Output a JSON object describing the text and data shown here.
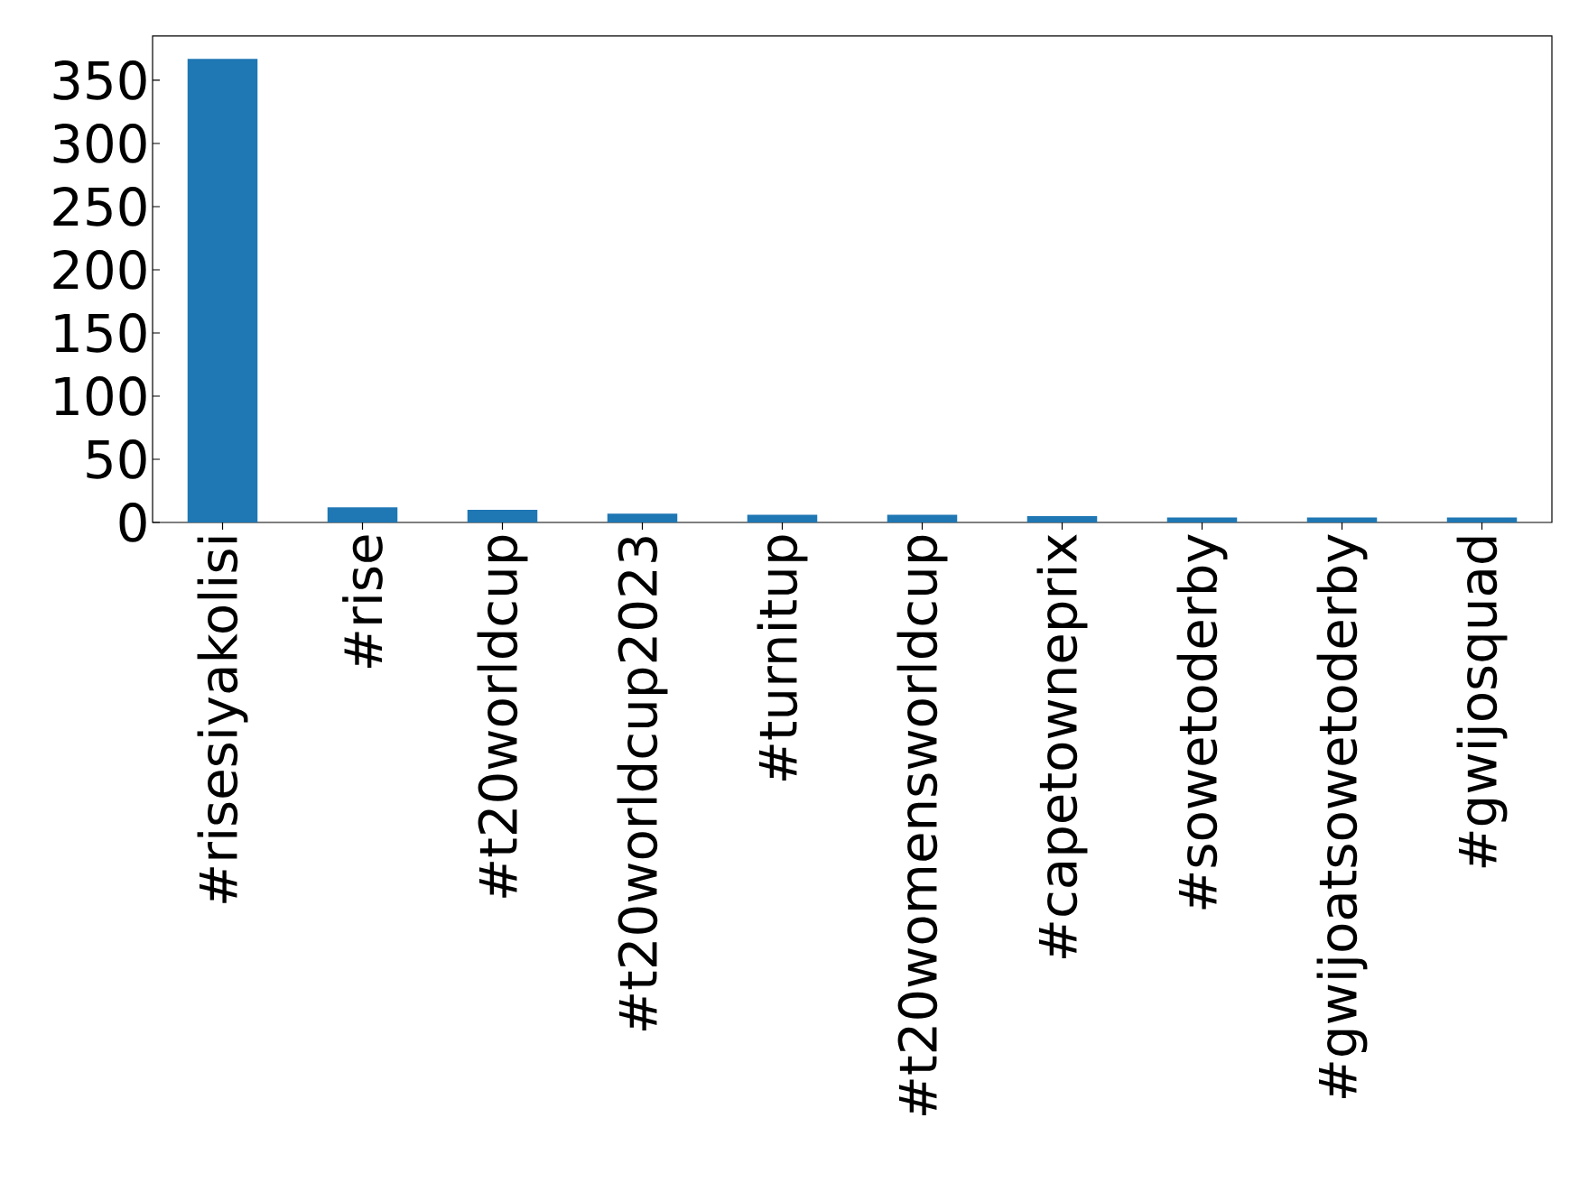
{
  "chart_data": {
    "type": "bar",
    "categories": [
      "#risesiyakolisi",
      "#rise",
      "#t20worldcup",
      "#t20worldcup2023",
      "#turnitup",
      "#t20womensworldcup",
      "#capetowneprix",
      "#sowetoderby",
      "#gwijoatsowetoderby",
      "#gwijosquad"
    ],
    "values": [
      367,
      12,
      10,
      7,
      6,
      6,
      5,
      4,
      4,
      4
    ],
    "color": "#1f77b4",
    "ylim": [
      0,
      385
    ],
    "yticks": [
      0,
      50,
      100,
      150,
      200,
      250,
      300,
      350
    ],
    "grid": false
  }
}
